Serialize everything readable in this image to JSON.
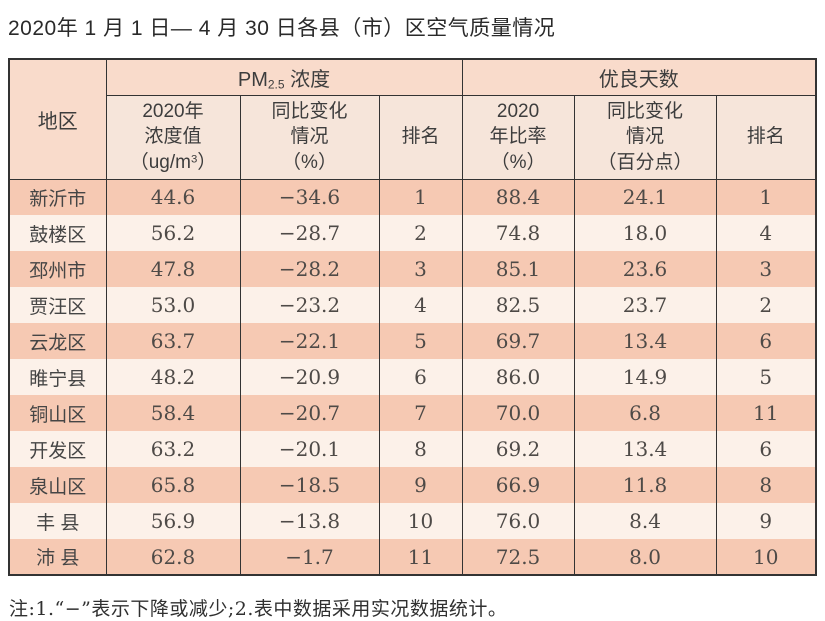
{
  "page": {
    "title": "2020年 1 月 1 日— 4 月 30 日各县（市）区空气质量情况",
    "note": "注:1.“−”表示下降或减少;2.表中数据采用实况数据统计。"
  },
  "colors": {
    "row_odd": "#f6c9b3",
    "row_even": "#fcf1e9",
    "header_group": "#f9dbcb",
    "header_sub": "#f6e5da",
    "border": "#333333"
  },
  "table": {
    "region_header": "地区",
    "group_pm": {
      "prefix": "PM",
      "sub": "2.5",
      "suffix": " 浓度"
    },
    "group_good": "优良天数",
    "columns": {
      "pm_value": {
        "line1": "2020年",
        "line2": "浓度值",
        "line3_open": "（ug/m",
        "sup": "3",
        "line3_close": "）"
      },
      "pm_change": {
        "line1": "同比变化",
        "line2": "情况",
        "line3": "（%）"
      },
      "pm_rank": "排名",
      "good_rate": {
        "line1": "2020",
        "line2": "年比率",
        "line3": "（%）"
      },
      "good_change": {
        "line1": "同比变化",
        "line2": "情况",
        "line3": "（百分点）"
      },
      "good_rank": "排名"
    },
    "rows": [
      {
        "region": "新沂市",
        "pm_value": "44.6",
        "pm_change": "−34.6",
        "pm_rank": "1",
        "good_rate": "88.4",
        "good_change": "24.1",
        "good_rank": "1"
      },
      {
        "region": "鼓楼区",
        "pm_value": "56.2",
        "pm_change": "−28.7",
        "pm_rank": "2",
        "good_rate": "74.8",
        "good_change": "18.0",
        "good_rank": "4"
      },
      {
        "region": "邳州市",
        "pm_value": "47.8",
        "pm_change": "−28.2",
        "pm_rank": "3",
        "good_rate": "85.1",
        "good_change": "23.6",
        "good_rank": "3"
      },
      {
        "region": "贾汪区",
        "pm_value": "53.0",
        "pm_change": "−23.2",
        "pm_rank": "4",
        "good_rate": "82.5",
        "good_change": "23.7",
        "good_rank": "2"
      },
      {
        "region": "云龙区",
        "pm_value": "63.7",
        "pm_change": "−22.1",
        "pm_rank": "5",
        "good_rate": "69.7",
        "good_change": "13.4",
        "good_rank": "6"
      },
      {
        "region": "睢宁县",
        "pm_value": "48.2",
        "pm_change": "−20.9",
        "pm_rank": "6",
        "good_rate": "86.0",
        "good_change": "14.9",
        "good_rank": "5"
      },
      {
        "region": "铜山区",
        "pm_value": "58.4",
        "pm_change": "−20.7",
        "pm_rank": "7",
        "good_rate": "70.0",
        "good_change": "6.8",
        "good_rank": "11"
      },
      {
        "region": "开发区",
        "pm_value": "63.2",
        "pm_change": "−20.1",
        "pm_rank": "8",
        "good_rate": "69.2",
        "good_change": "13.4",
        "good_rank": "6"
      },
      {
        "region": "泉山区",
        "pm_value": "65.8",
        "pm_change": "−18.5",
        "pm_rank": "9",
        "good_rate": "66.9",
        "good_change": "11.8",
        "good_rank": "8"
      },
      {
        "region": "丰 县",
        "pm_value": "56.9",
        "pm_change": "−13.8",
        "pm_rank": "10",
        "good_rate": "76.0",
        "good_change": "8.4",
        "good_rank": "9"
      },
      {
        "region": "沛 县",
        "pm_value": "62.8",
        "pm_change": "−1.7",
        "pm_rank": "11",
        "good_rate": "72.5",
        "good_change": "8.0",
        "good_rank": "10"
      }
    ]
  }
}
